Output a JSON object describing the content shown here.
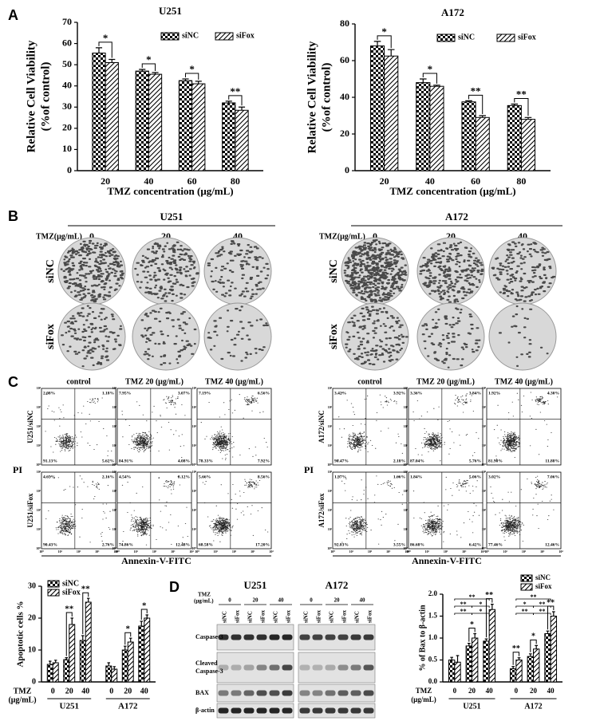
{
  "panels": [
    "A",
    "B",
    "C",
    "D"
  ],
  "chart_data": [
    {
      "type": "bar",
      "title": "U251",
      "ylabel": [
        "Relative Cell Viability",
        "(%of control)"
      ],
      "xlabel": "TMZ concentration (μg/mL)",
      "categories": [
        "20",
        "40",
        "60",
        "80"
      ],
      "series": [
        {
          "name": "siNC",
          "color": "#000000",
          "pattern": "checker",
          "values": [
            55.5,
            47,
            42.5,
            32
          ],
          "errors": [
            2.5,
            0.8,
            0.8,
            0.8
          ]
        },
        {
          "name": "siFox",
          "color": "#000000",
          "pattern": "hatch",
          "values": [
            51,
            45.5,
            41,
            28.5
          ],
          "errors": [
            1.5,
            0.8,
            1.2,
            1.5
          ]
        }
      ],
      "annotations": [
        "*",
        "*",
        "*",
        "**"
      ],
      "ylim": [
        0,
        70
      ],
      "yticks": [
        0,
        10,
        20,
        30,
        40,
        50,
        60,
        70
      ],
      "legend": "top-right"
    },
    {
      "type": "bar",
      "title": "A172",
      "ylabel": [
        "Relative Cell Viability",
        "(%of control)"
      ],
      "xlabel": "TMZ concentration (μg/mL)",
      "categories": [
        "20",
        "40",
        "60",
        "80"
      ],
      "series": [
        {
          "name": "siNC",
          "color": "#000000",
          "pattern": "checker",
          "values": [
            68,
            48,
            37.5,
            35.5
          ],
          "errors": [
            2.5,
            2,
            0.6,
            0.8
          ]
        },
        {
          "name": "siFox",
          "color": "#000000",
          "pattern": "hatch",
          "values": [
            62.5,
            46,
            29,
            28
          ],
          "errors": [
            3.5,
            0.6,
            1,
            1
          ]
        }
      ],
      "annotations": [
        "*",
        "*",
        "**",
        "**"
      ],
      "ylim": [
        0,
        80
      ],
      "yticks": [
        0,
        20,
        40,
        60,
        80
      ],
      "legend": "top-right"
    },
    {
      "type": "bar",
      "ylabel": [
        "Apoptotic cells %"
      ],
      "xlabel": [
        "TMZ",
        "(μg/mL)"
      ],
      "categories": [
        "0",
        "20",
        "40",
        "0",
        "20",
        "40"
      ],
      "groups": [
        "U251",
        "A172"
      ],
      "series": [
        {
          "name": "siNC",
          "color": "#000000",
          "pattern": "checker",
          "values": [
            5.5,
            7,
            13,
            5,
            10,
            17.5
          ],
          "errors": [
            1,
            0.6,
            1.5,
            1,
            1.2,
            1.5
          ]
        },
        {
          "name": "siFox",
          "color": "#000000",
          "pattern": "hatch",
          "values": [
            6,
            18,
            25,
            4,
            12.5,
            20
          ],
          "errors": [
            0.8,
            2,
            1.2,
            0.8,
            1.2,
            1
          ]
        }
      ],
      "annotations": [
        null,
        "**",
        "**",
        null,
        "*",
        "*"
      ],
      "ylim": [
        0,
        30
      ],
      "yticks": [
        0,
        10,
        20,
        30
      ],
      "legend": "top-left"
    },
    {
      "type": "bar",
      "ylabel": [
        "% of Bax to β-actin"
      ],
      "xlabel": [
        "TMZ",
        "(μg/mL)"
      ],
      "categories": [
        "0",
        "20",
        "40",
        "0",
        "20",
        "40"
      ],
      "groups": [
        "U251",
        "A172"
      ],
      "series": [
        {
          "name": "siNC",
          "color": "#000000",
          "pattern": "checker",
          "values": [
            0.5,
            0.82,
            0.93,
            0.3,
            0.58,
            1.1
          ],
          "errors": [
            0.06,
            0.06,
            0.05,
            0.05,
            0.06,
            0.06
          ]
        },
        {
          "name": "siFox",
          "color": "#000000",
          "pattern": "hatch",
          "values": [
            0.45,
            1.0,
            1.65,
            0.5,
            0.75,
            1.5
          ],
          "errors": [
            0.15,
            0.1,
            0.12,
            0.05,
            0.08,
            0.1
          ]
        }
      ],
      "annotations": [
        null,
        "*",
        "**",
        "**",
        "*",
        "**"
      ],
      "comparisons": [
        "**",
        "**",
        "*",
        "**",
        "*",
        "**",
        "*",
        "**",
        "**",
        "**"
      ],
      "ylim": [
        0,
        2
      ],
      "yticks": [
        {
          "value": 0,
          "label": "0.0"
        },
        0.5,
        {
          "value": 1,
          "label": "1.0"
        },
        1.5,
        {
          "value": 2,
          "label": "2.0"
        }
      ],
      "legend": "top-right"
    }
  ],
  "colony": {
    "titles": [
      "U251",
      "A172"
    ],
    "tmz_label": "TMZ(μg/mL)",
    "doses": [
      "0",
      "20",
      "40"
    ],
    "rows": [
      "siNC",
      "siFox"
    ]
  },
  "flow": {
    "columns": [
      "control",
      "TMZ 20 (μg/mL)",
      "TMZ 40 (μg/mL)"
    ],
    "ylabel": "PI",
    "xlabel": "Annexin-V-FITC",
    "ticks": [
      "10⁰",
      "10¹",
      "10²",
      "10³",
      "10⁴"
    ],
    "rows": [
      {
        "label": "U251/siNC",
        "plots": [
          [
            "2.08%",
            "1.18%",
            "91.13%",
            "5.62%"
          ],
          [
            "7.95%",
            "3.07%",
            "84.91%",
            "4.08%"
          ],
          [
            "7.19%",
            "6.56%",
            "78.33%",
            "7.92%"
          ]
        ]
      },
      {
        "label": "U251/siFox",
        "plots": [
          [
            "4.65%",
            "2.16%",
            "90.43%",
            "2.76%"
          ],
          [
            "4.54%",
            "8.12%",
            "74.86%",
            "12.48%"
          ],
          [
            "5.66%",
            "8.56%",
            "68.58%",
            "17.20%"
          ]
        ]
      },
      {
        "label": "A172/siNC",
        "plots": [
          [
            "3.42%",
            "3.92%",
            "90.47%",
            "2.18%"
          ],
          [
            "3.36%",
            "3.84%",
            "87.04%",
            "5.76%"
          ],
          [
            "1.92%",
            "4.30%",
            "81.90%",
            "11.88%"
          ]
        ]
      },
      {
        "label": "A172/siFox",
        "plots": [
          [
            "1.97%",
            "1.66%",
            "92.83%",
            "3.55%"
          ],
          [
            "1.84%",
            "5.06%",
            "86.68%",
            "6.42%"
          ],
          [
            "3.02%",
            "7.06%",
            "77.46%",
            "12.46%"
          ]
        ]
      }
    ]
  },
  "western": {
    "titles": [
      "U251",
      "A172"
    ],
    "tmz": "TMZ",
    "unit": "(μg/mL)",
    "doses": [
      "0",
      "20",
      "40"
    ],
    "lanes": [
      "siNC",
      "siFox"
    ],
    "proteins": [
      [
        "Caspase-3"
      ],
      [
        "Cleaved",
        "Caspase-3"
      ],
      [
        "BAX"
      ],
      [
        "β-actin"
      ]
    ]
  }
}
